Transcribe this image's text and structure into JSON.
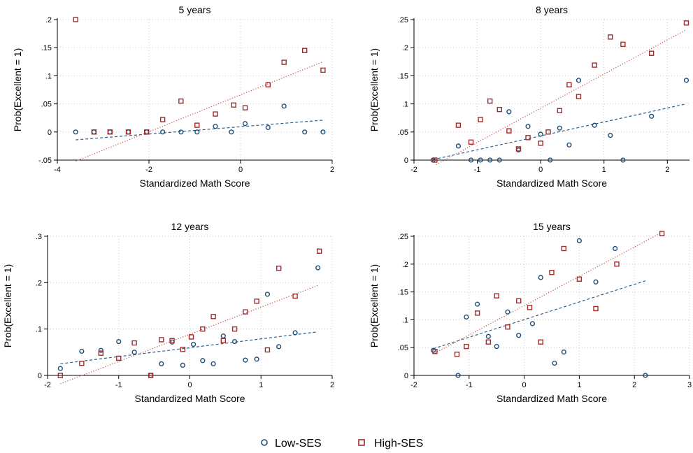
{
  "colors": {
    "low": "#1f4e79",
    "high": "#a02c2c",
    "low_line": "#2e5f8a",
    "high_line": "#c0504d",
    "grid": "#c8c8c8"
  },
  "legend": {
    "low_label": "Low-SES",
    "high_label": "High-SES",
    "position": "bottom-center"
  },
  "chart_data": [
    {
      "type": "scatter",
      "title": "5 years",
      "xlabel": "Standardized Math Score",
      "ylabel": "Prob(Excellent = 1)",
      "xlim": [
        -4,
        2
      ],
      "ylim": [
        -0.05,
        0.2
      ],
      "xticks": [
        -4,
        -2,
        0,
        2
      ],
      "xtick_labels": [
        "-4",
        "-2",
        "0",
        "2"
      ],
      "yticks": [
        -0.05,
        0,
        0.05,
        0.1,
        0.15,
        0.2
      ],
      "ytick_labels": [
        "-.05",
        "0",
        ".05",
        ".1",
        ".15",
        ".2"
      ],
      "grid": true,
      "series": [
        {
          "name": "Low-SES",
          "x": [
            -3.6,
            -3.2,
            -2.85,
            -2.45,
            -2.05,
            -1.7,
            -1.3,
            -0.95,
            -0.55,
            -0.2,
            0.1,
            0.6,
            0.95,
            1.4,
            1.8
          ],
          "y": [
            0,
            0,
            0,
            0,
            0,
            0,
            0,
            0,
            0.01,
            0,
            0.015,
            0.008,
            0.046,
            0,
            0
          ]
        },
        {
          "name": "High-SES",
          "x": [
            -3.6,
            -3.2,
            -2.85,
            -2.45,
            -2.05,
            -1.7,
            -1.3,
            -0.95,
            -0.55,
            -0.15,
            0.1,
            0.6,
            0.95,
            1.4,
            1.8
          ],
          "y": [
            0.2,
            0,
            0,
            0,
            0,
            0.022,
            0.055,
            0.012,
            0.032,
            0.048,
            0.043,
            0.084,
            0.124,
            0.145,
            0.11
          ]
        }
      ],
      "fits": [
        {
          "series": "Low-SES",
          "x": [
            -3.6,
            1.8
          ],
          "y": [
            -0.014,
            0.021
          ]
        },
        {
          "series": "High-SES",
          "x": [
            -3.6,
            1.8
          ],
          "y": [
            -0.052,
            0.125
          ]
        }
      ]
    },
    {
      "type": "scatter",
      "title": "8 years",
      "xlabel": "Standardized Math Score",
      "ylabel": "Prob(Excellent = 1)",
      "xlim": [
        -2,
        2.35
      ],
      "ylim": [
        0,
        0.25
      ],
      "xticks": [
        -2,
        -1,
        0,
        1,
        2
      ],
      "xtick_labels": [
        "-2",
        "-1",
        "0",
        "1",
        "2"
      ],
      "yticks": [
        0,
        0.05,
        0.1,
        0.15,
        0.2,
        0.25
      ],
      "ytick_labels": [
        "0",
        ".05",
        ".1",
        ".15",
        ".2",
        ".25"
      ],
      "grid": true,
      "series": [
        {
          "name": "Low-SES",
          "x": [
            -1.7,
            -1.3,
            -1.1,
            -0.95,
            -0.8,
            -0.65,
            -0.5,
            -0.35,
            -0.2,
            0,
            0.15,
            0.3,
            0.45,
            0.6,
            0.85,
            1.1,
            1.3,
            1.75,
            2.3
          ],
          "y": [
            0,
            0.025,
            0,
            0,
            0,
            0,
            0.086,
            0.018,
            0.06,
            0.046,
            0,
            0.057,
            0.027,
            0.142,
            0.062,
            0.044,
            0,
            0.078,
            0.142
          ]
        },
        {
          "name": "High-SES",
          "x": [
            -1.67,
            -1.3,
            -1.1,
            -0.95,
            -0.8,
            -0.65,
            -0.5,
            -0.35,
            -0.2,
            0,
            0.12,
            0.3,
            0.45,
            0.6,
            0.85,
            1.1,
            1.3,
            1.75,
            2.3
          ],
          "y": [
            0,
            0.062,
            0.032,
            0.072,
            0.105,
            0.09,
            0.052,
            0.02,
            0.04,
            0.03,
            0.05,
            0.088,
            0.134,
            0.113,
            0.169,
            0.219,
            0.206,
            0.19,
            0.244
          ]
        }
      ],
      "fits": [
        {
          "series": "Low-SES",
          "x": [
            -1.7,
            2.3
          ],
          "y": [
            0.001,
            0.1
          ]
        },
        {
          "series": "High-SES",
          "x": [
            -1.65,
            2.3
          ],
          "y": [
            -0.008,
            0.232
          ]
        }
      ]
    },
    {
      "type": "scatter",
      "title": "12 years",
      "xlabel": "Standardized Math Score",
      "ylabel": "Prob(Excellent = 1)",
      "xlim": [
        -2,
        2
      ],
      "ylim": [
        0,
        0.3
      ],
      "xticks": [
        -2,
        -1,
        0,
        1,
        2
      ],
      "xtick_labels": [
        "-2",
        "-1",
        "0",
        "1",
        "2"
      ],
      "yticks": [
        0,
        0.1,
        0.2,
        0.3
      ],
      "ytick_labels": [
        "0",
        ".1",
        ".2",
        ".3"
      ],
      "grid": true,
      "series": [
        {
          "name": "Low-SES",
          "x": [
            -1.82,
            -1.52,
            -1.25,
            -1.0,
            -0.78,
            -0.55,
            -0.4,
            -0.25,
            -0.1,
            0.05,
            0.18,
            0.33,
            0.47,
            0.63,
            0.78,
            0.94,
            1.09,
            1.25,
            1.48,
            1.8
          ],
          "y": [
            0.015,
            0.052,
            0.054,
            0.073,
            0.05,
            0,
            0.025,
            0.072,
            0.022,
            0.067,
            0.032,
            0.025,
            0.085,
            0.073,
            0.033,
            0.035,
            0.175,
            0.062,
            0.092,
            0.232
          ]
        },
        {
          "name": "High-SES",
          "x": [
            -1.82,
            -1.52,
            -1.25,
            -1.0,
            -0.78,
            -0.55,
            -0.4,
            -0.25,
            -0.1,
            0.02,
            0.18,
            0.33,
            0.47,
            0.63,
            0.78,
            0.94,
            1.09,
            1.25,
            1.48,
            1.82
          ],
          "y": [
            0,
            0.026,
            0.048,
            0.037,
            0.07,
            0,
            0.077,
            0.075,
            0.056,
            0.083,
            0.1,
            0.127,
            0.075,
            0.1,
            0.137,
            0.16,
            0.055,
            0.231,
            0.171,
            0.268
          ]
        }
      ],
      "fits": [
        {
          "series": "Low-SES",
          "x": [
            -1.82,
            1.8
          ],
          "y": [
            0.025,
            0.094
          ]
        },
        {
          "series": "High-SES",
          "x": [
            -1.82,
            1.8
          ],
          "y": [
            -0.018,
            0.194
          ]
        }
      ]
    },
    {
      "type": "scatter",
      "title": "15 years",
      "xlabel": "Standardized Math Score",
      "ylabel": "Prob(Excellent = 1)",
      "xlim": [
        -2,
        3
      ],
      "ylim": [
        0,
        0.25
      ],
      "xticks": [
        -2,
        -1,
        0,
        1,
        2,
        3
      ],
      "xtick_labels": [
        "-2",
        "-1",
        "0",
        "1",
        "2",
        "3"
      ],
      "yticks": [
        0,
        0.05,
        0.1,
        0.15,
        0.2,
        0.25
      ],
      "ytick_labels": [
        "0",
        ".05",
        ".1",
        ".15",
        ".2",
        ".25"
      ],
      "grid": true,
      "series": [
        {
          "name": "Low-SES",
          "x": [
            -1.65,
            -1.2,
            -1.05,
            -0.85,
            -0.65,
            -0.5,
            -0.3,
            -0.1,
            0.15,
            0.3,
            0.55,
            0.72,
            1.0,
            1.3,
            1.65,
            2.2
          ],
          "y": [
            0.045,
            0,
            0.105,
            0.128,
            0.07,
            0.052,
            0.114,
            0.072,
            0.093,
            0.176,
            0.022,
            0.042,
            0.242,
            0.168,
            0.228,
            0
          ]
        },
        {
          "name": "High-SES",
          "x": [
            -1.62,
            -1.22,
            -1.05,
            -0.85,
            -0.65,
            -0.5,
            -0.3,
            -0.1,
            0.1,
            0.3,
            0.5,
            0.72,
            1.0,
            1.3,
            1.68,
            2.5
          ],
          "y": [
            0.043,
            0.038,
            0.052,
            0.112,
            0.06,
            0.143,
            0.087,
            0.134,
            0.122,
            0.06,
            0.185,
            0.228,
            0.173,
            0.12,
            0.2,
            0.255
          ]
        }
      ],
      "fits": [
        {
          "series": "Low-SES",
          "x": [
            -1.65,
            2.2
          ],
          "y": [
            0.048,
            0.17
          ]
        },
        {
          "series": "High-SES",
          "x": [
            -1.62,
            2.5
          ],
          "y": [
            0.04,
            0.257
          ]
        }
      ]
    }
  ]
}
